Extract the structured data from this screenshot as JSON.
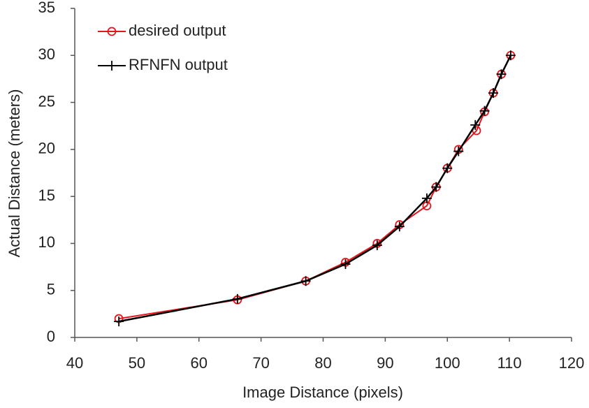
{
  "chart_data": {
    "type": "line",
    "x_label": "Image Distance (pixels)",
    "y_label": "Actual Distance (meters)",
    "xlim": [
      40,
      120
    ],
    "xticks": [
      40,
      50,
      60,
      70,
      80,
      90,
      100,
      110,
      120
    ],
    "ylim": [
      0,
      35
    ],
    "yticks": [
      0,
      5,
      10,
      15,
      20,
      25,
      30,
      35
    ],
    "grid": false,
    "legend": "upper left",
    "series": [
      {
        "name": "desired output",
        "color": "#e8141b",
        "marker": "circle",
        "x": [
          47.1,
          66.2,
          77.2,
          83.6,
          88.7,
          92.3,
          96.7,
          98.2,
          100,
          101.8,
          104.7,
          106,
          107.4,
          108.7,
          110.2
        ],
        "values": [
          2,
          4,
          6,
          8,
          10,
          12,
          14,
          16,
          18,
          20,
          22,
          24,
          26,
          28,
          30
        ]
      },
      {
        "name": "RFNFN output",
        "color": "#000000",
        "marker": "plus",
        "x": [
          47.1,
          66.2,
          77.2,
          83.6,
          88.7,
          92.3,
          96.7,
          98.2,
          100,
          101.8,
          104.5,
          106,
          107.4,
          108.7,
          110.2
        ],
        "values": [
          1.7,
          4.1,
          6,
          7.8,
          9.8,
          11.8,
          14.8,
          16,
          18,
          19.8,
          22.6,
          24.1,
          26,
          28,
          30
        ]
      }
    ]
  }
}
